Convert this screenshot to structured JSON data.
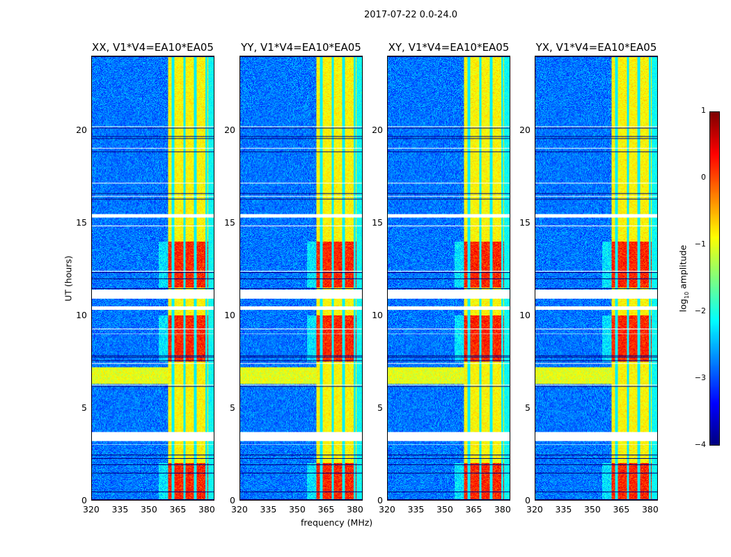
{
  "chart_data": {
    "type": "heatmap",
    "title": "2017-07-22 0.0-24.0",
    "xlabel": "frequency (MHz)",
    "ylabel": "UT (hours)",
    "xlim": [
      320,
      384
    ],
    "ylim": [
      0,
      24
    ],
    "xticks": [
      "320",
      "335",
      "350",
      "365",
      "380"
    ],
    "xtick_values": [
      320,
      335,
      350,
      365,
      380
    ],
    "yticks": [
      "0",
      "5",
      "10",
      "15",
      "20"
    ],
    "ytick_values": [
      0,
      5,
      10,
      15,
      20
    ],
    "panels": [
      {
        "title": "XX, V1*V4=EA10*EA05"
      },
      {
        "title": "YY, V1*V4=EA10*EA05"
      },
      {
        "title": "XY, V1*V4=EA10*EA05"
      },
      {
        "title": "YX, V1*V4=EA10*EA05"
      }
    ],
    "colorbar": {
      "label_main": "log",
      "label_sub": "10",
      "label_rest": " amplitude",
      "colormap": "jet",
      "range": [
        -4,
        1
      ],
      "ticks": [
        "1",
        "0",
        "−1",
        "−2",
        "−3",
        "−4"
      ],
      "tick_values": [
        1,
        0,
        -1,
        -2,
        -3,
        -4
      ]
    },
    "bright_band_mhz": [
      360,
      381
    ],
    "channel_gaps_mhz": [
      362.5,
      368.5,
      374,
      380
    ],
    "flagged_hours": [
      [
        3.2,
        3.7
      ],
      [
        10.9,
        11.4
      ],
      [
        15.3,
        15.5
      ],
      [
        10.3,
        10.5
      ]
    ],
    "high_activity_hours": [
      [
        0,
        2
      ],
      [
        7.5,
        10
      ],
      [
        11.5,
        14
      ]
    ]
  }
}
